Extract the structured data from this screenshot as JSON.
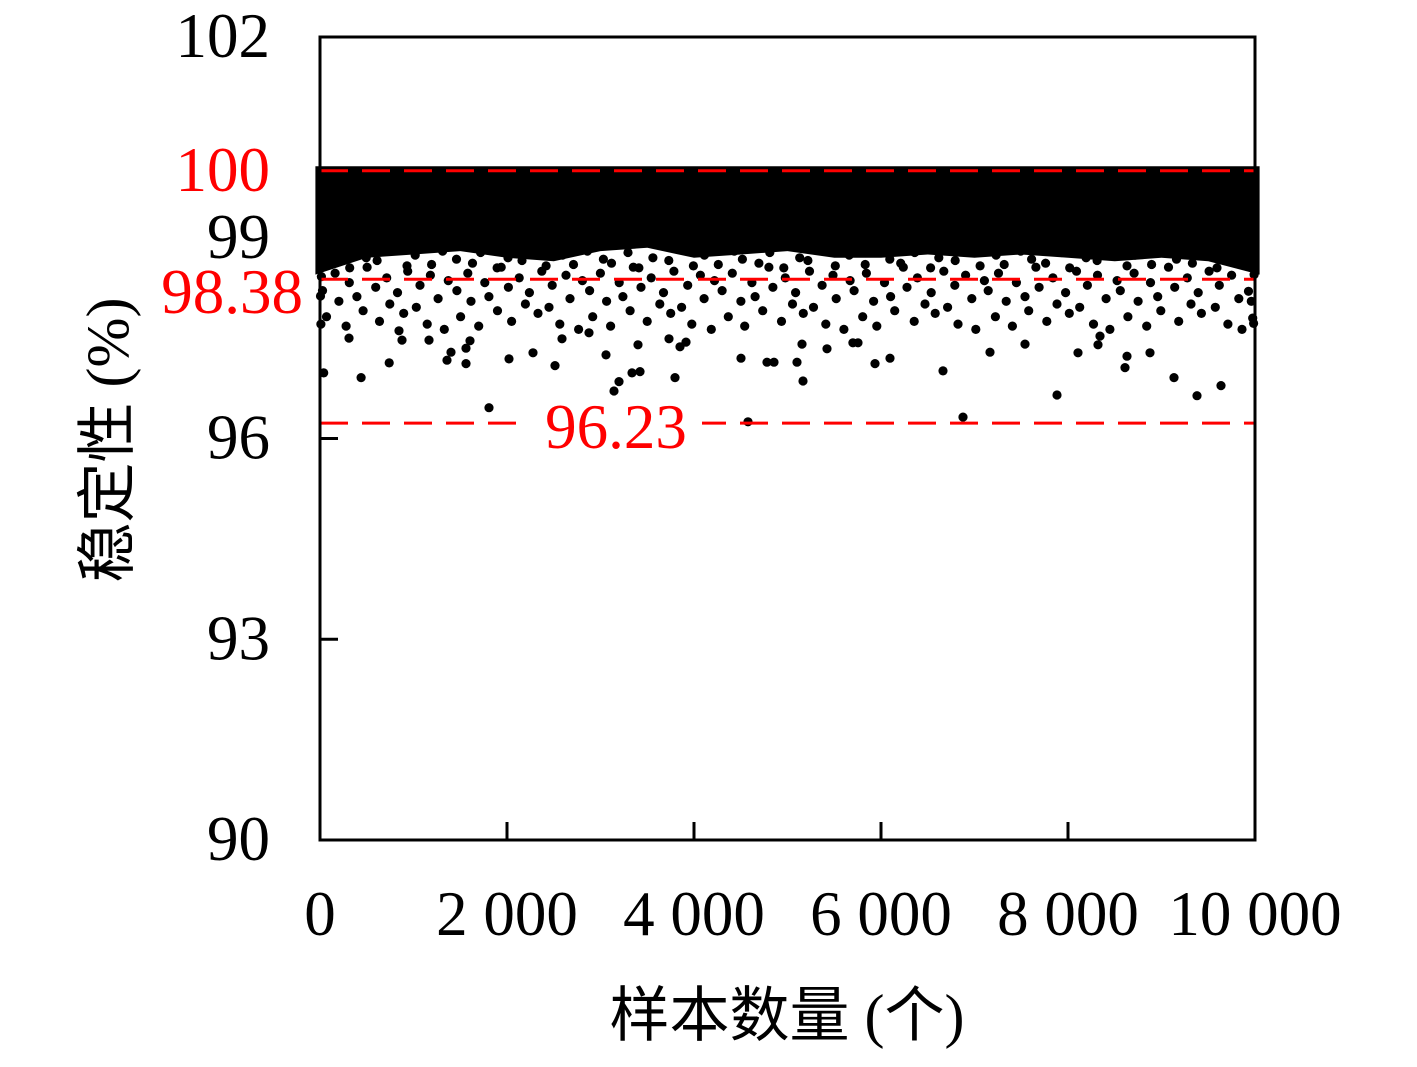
{
  "chart_data": {
    "type": "scatter",
    "xlabel": "样本数量 (个)",
    "ylabel": "稳定性 (%)",
    "xlim": [
      0,
      10000
    ],
    "ylim": [
      90,
      102
    ],
    "grid": false,
    "marker_color": "#000000",
    "x_ticks": {
      "values": [
        0,
        2000,
        4000,
        6000,
        8000,
        10000
      ],
      "labels": [
        "0",
        "2 000",
        "4 000",
        "6 000",
        "8 000",
        "10 000"
      ]
    },
    "y_ticks": {
      "values": [
        90,
        93,
        96,
        99,
        102
      ],
      "labels": [
        "90",
        "93",
        "96",
        "99",
        "102"
      ]
    },
    "reference_lines": [
      {
        "y": 100,
        "label": "100",
        "color": "#ff0000",
        "line_style": "dashed",
        "label_position": "left-axis"
      },
      {
        "y": 98.38,
        "label": "98.38",
        "color": "#ff0000",
        "line_style": "dashed",
        "label_position": "left-axis"
      },
      {
        "y": 96.23,
        "label": "96.23",
        "color": "#ff0000",
        "line_style": "dashed",
        "label_position": "inline"
      }
    ],
    "dense_band": {
      "x": [
        0,
        500,
        1000,
        1500,
        2000,
        2500,
        3000,
        3500,
        4000,
        4500,
        5000,
        5500,
        6000,
        6500,
        7000,
        7500,
        8000,
        8500,
        9000,
        9500,
        10000
      ],
      "y_lower": [
        98.45,
        98.7,
        98.75,
        98.8,
        98.7,
        98.65,
        98.8,
        98.85,
        98.7,
        98.75,
        98.8,
        98.7,
        98.7,
        98.75,
        98.7,
        98.75,
        98.7,
        98.65,
        98.7,
        98.65,
        98.45
      ],
      "y_upper": 100
    },
    "points": [
      [
        40,
        96.98
      ],
      [
        310,
        97.5
      ],
      [
        440,
        96.91
      ],
      [
        740,
        97.13
      ],
      [
        845,
        97.61
      ],
      [
        877,
        97.47
      ],
      [
        1166,
        97.47
      ],
      [
        1358,
        97.17
      ],
      [
        1401,
        97.29
      ],
      [
        1561,
        97.12
      ],
      [
        1561,
        97.35
      ],
      [
        1604,
        97.46
      ],
      [
        1807,
        96.46
      ],
      [
        2021,
        97.19
      ],
      [
        2278,
        97.28
      ],
      [
        2513,
        97.09
      ],
      [
        2588,
        97.49
      ],
      [
        2877,
        97.58
      ],
      [
        3059,
        97.25
      ],
      [
        3144,
        96.71
      ],
      [
        3198,
        96.85
      ],
      [
        3337,
        96.98
      ],
      [
        3401,
        97.4
      ],
      [
        3422,
        97.0
      ],
      [
        3733,
        97.49
      ],
      [
        3797,
        96.91
      ],
      [
        3850,
        97.37
      ],
      [
        3914,
        97.44
      ],
      [
        4503,
        97.2
      ],
      [
        4578,
        96.25
      ],
      [
        4781,
        97.14
      ],
      [
        4856,
        97.14
      ],
      [
        5102,
        97.14
      ],
      [
        5166,
        96.86
      ],
      [
        5155,
        97.41
      ],
      [
        5422,
        97.34
      ],
      [
        5700,
        97.43
      ],
      [
        5754,
        97.43
      ],
      [
        5936,
        97.12
      ],
      [
        6096,
        97.2
      ],
      [
        6663,
        97.01
      ],
      [
        6877,
        96.32
      ],
      [
        7166,
        97.29
      ],
      [
        7540,
        97.41
      ],
      [
        7882,
        96.65
      ],
      [
        8107,
        97.28
      ],
      [
        8342,
        97.53
      ],
      [
        8321,
        97.4
      ],
      [
        8610,
        97.06
      ],
      [
        8631,
        97.23
      ],
      [
        8877,
        97.28
      ],
      [
        9134,
        96.91
      ],
      [
        9380,
        96.64
      ],
      [
        9636,
        96.79
      ],
      [
        27,
        98.21
      ],
      [
        70,
        97.82
      ],
      [
        162,
        98.47
      ],
      [
        202,
        98.05
      ],
      [
        279,
        97.68
      ],
      [
        313,
        98.33
      ],
      [
        395,
        98.12
      ],
      [
        461,
        97.91
      ],
      [
        504,
        98.56
      ],
      [
        596,
        98.26
      ],
      [
        636,
        97.75
      ],
      [
        713,
        98.4
      ],
      [
        747,
        98.01
      ],
      [
        829,
        98.18
      ],
      [
        895,
        97.87
      ],
      [
        938,
        98.5
      ],
      [
        1030,
        97.96
      ],
      [
        1070,
        98.29
      ],
      [
        1147,
        97.71
      ],
      [
        1181,
        98.44
      ],
      [
        1263,
        98.09
      ],
      [
        1329,
        97.63
      ],
      [
        1372,
        98.36
      ],
      [
        1464,
        98.21
      ],
      [
        1504,
        97.82
      ],
      [
        1581,
        98.47
      ],
      [
        1615,
        98.05
      ],
      [
        1697,
        97.68
      ],
      [
        1763,
        98.33
      ],
      [
        1806,
        98.12
      ],
      [
        1898,
        97.91
      ],
      [
        1938,
        98.56
      ],
      [
        2015,
        98.26
      ],
      [
        2049,
        97.75
      ],
      [
        2131,
        98.4
      ],
      [
        2197,
        98.01
      ],
      [
        2240,
        98.18
      ],
      [
        2332,
        97.87
      ],
      [
        2372,
        98.5
      ],
      [
        2449,
        97.96
      ],
      [
        2483,
        98.29
      ],
      [
        2565,
        97.71
      ],
      [
        2631,
        98.44
      ],
      [
        2674,
        98.09
      ],
      [
        2766,
        97.63
      ],
      [
        2806,
        98.36
      ],
      [
        2883,
        98.21
      ],
      [
        2917,
        97.82
      ],
      [
        2999,
        98.47
      ],
      [
        3065,
        98.05
      ],
      [
        3108,
        97.68
      ],
      [
        3200,
        98.33
      ],
      [
        3240,
        98.12
      ],
      [
        3317,
        97.91
      ],
      [
        3351,
        98.56
      ],
      [
        3433,
        98.26
      ],
      [
        3499,
        97.75
      ],
      [
        3542,
        98.4
      ],
      [
        3634,
        98.01
      ],
      [
        3674,
        98.18
      ],
      [
        3751,
        97.87
      ],
      [
        3785,
        98.5
      ],
      [
        3867,
        97.96
      ],
      [
        3933,
        98.29
      ],
      [
        3976,
        97.71
      ],
      [
        4068,
        98.44
      ],
      [
        4108,
        98.09
      ],
      [
        4185,
        97.63
      ],
      [
        4219,
        98.36
      ],
      [
        4301,
        98.21
      ],
      [
        4367,
        97.82
      ],
      [
        4410,
        98.47
      ],
      [
        4502,
        98.05
      ],
      [
        4542,
        97.68
      ],
      [
        4619,
        98.33
      ],
      [
        4653,
        98.12
      ],
      [
        4735,
        97.91
      ],
      [
        4801,
        98.56
      ],
      [
        4844,
        98.26
      ],
      [
        4936,
        97.75
      ],
      [
        4976,
        98.4
      ],
      [
        5053,
        98.01
      ],
      [
        5087,
        98.18
      ],
      [
        5169,
        97.87
      ],
      [
        5235,
        98.5
      ],
      [
        5278,
        97.96
      ],
      [
        5370,
        98.29
      ],
      [
        5410,
        97.71
      ],
      [
        5487,
        98.44
      ],
      [
        5521,
        98.09
      ],
      [
        5603,
        97.63
      ],
      [
        5669,
        98.36
      ],
      [
        5712,
        98.21
      ],
      [
        5804,
        97.82
      ],
      [
        5844,
        98.47
      ],
      [
        5921,
        98.05
      ],
      [
        5955,
        97.68
      ],
      [
        6037,
        98.33
      ],
      [
        6103,
        98.12
      ],
      [
        6146,
        97.91
      ],
      [
        6238,
        98.56
      ],
      [
        6278,
        98.26
      ],
      [
        6355,
        97.75
      ],
      [
        6389,
        98.4
      ],
      [
        6471,
        98.01
      ],
      [
        6537,
        98.18
      ],
      [
        6580,
        97.87
      ],
      [
        6672,
        98.5
      ],
      [
        6712,
        97.96
      ],
      [
        6789,
        98.29
      ],
      [
        6823,
        97.71
      ],
      [
        6905,
        98.44
      ],
      [
        6971,
        98.09
      ],
      [
        7014,
        97.63
      ],
      [
        7106,
        98.36
      ],
      [
        7146,
        98.21
      ],
      [
        7223,
        97.82
      ],
      [
        7257,
        98.47
      ],
      [
        7339,
        98.05
      ],
      [
        7405,
        97.68
      ],
      [
        7448,
        98.33
      ],
      [
        7540,
        98.12
      ],
      [
        7580,
        97.91
      ],
      [
        7657,
        98.56
      ],
      [
        7691,
        98.26
      ],
      [
        7773,
        97.75
      ],
      [
        7839,
        98.4
      ],
      [
        7882,
        98.01
      ],
      [
        7974,
        98.18
      ],
      [
        8014,
        97.87
      ],
      [
        8091,
        98.5
      ],
      [
        8125,
        97.96
      ],
      [
        8207,
        98.29
      ],
      [
        8273,
        97.71
      ],
      [
        8316,
        98.44
      ],
      [
        8408,
        98.09
      ],
      [
        8448,
        97.63
      ],
      [
        8525,
        98.36
      ],
      [
        8559,
        98.21
      ],
      [
        8641,
        97.82
      ],
      [
        8707,
        98.47
      ],
      [
        8750,
        98.05
      ],
      [
        8842,
        97.68
      ],
      [
        8882,
        98.33
      ],
      [
        8959,
        98.12
      ],
      [
        8993,
        97.91
      ],
      [
        9075,
        98.56
      ],
      [
        9141,
        98.26
      ],
      [
        9184,
        97.75
      ],
      [
        9276,
        98.4
      ],
      [
        9316,
        98.01
      ],
      [
        9393,
        98.18
      ],
      [
        9427,
        97.87
      ],
      [
        9509,
        98.5
      ],
      [
        9575,
        97.96
      ],
      [
        9618,
        98.29
      ],
      [
        9710,
        97.71
      ],
      [
        9750,
        98.44
      ],
      [
        9827,
        98.09
      ],
      [
        9861,
        97.63
      ],
      [
        5,
        98.13
      ],
      [
        10,
        97.71
      ],
      [
        15,
        98.42
      ],
      [
        9930,
        98.2
      ],
      [
        9975,
        97.8
      ],
      [
        9990,
        98.45
      ],
      [
        9985,
        97.72
      ],
      [
        9960,
        98.05
      ],
      [
        60,
        98.62
      ],
      [
        231,
        98.78
      ],
      [
        318,
        98.55
      ],
      [
        494,
        98.7
      ],
      [
        611,
        98.66
      ],
      [
        760,
        98.83
      ],
      [
        931,
        98.58
      ],
      [
        1018,
        98.74
      ],
      [
        1194,
        98.6
      ],
      [
        1311,
        98.8
      ],
      [
        1460,
        98.68
      ],
      [
        1631,
        98.62
      ],
      [
        1718,
        98.78
      ],
      [
        1894,
        98.55
      ],
      [
        2011,
        98.7
      ],
      [
        2160,
        98.66
      ],
      [
        2331,
        98.83
      ],
      [
        2418,
        98.58
      ],
      [
        2594,
        98.74
      ],
      [
        2711,
        98.6
      ],
      [
        2860,
        98.8
      ],
      [
        3031,
        98.68
      ],
      [
        3118,
        98.62
      ],
      [
        3294,
        98.78
      ],
      [
        3411,
        98.55
      ],
      [
        3560,
        98.7
      ],
      [
        3731,
        98.66
      ],
      [
        3818,
        98.83
      ],
      [
        3994,
        98.58
      ],
      [
        4111,
        98.74
      ],
      [
        4260,
        98.6
      ],
      [
        4431,
        98.8
      ],
      [
        4518,
        98.68
      ],
      [
        4694,
        98.62
      ],
      [
        4811,
        98.78
      ],
      [
        4960,
        98.55
      ],
      [
        5131,
        98.7
      ],
      [
        5218,
        98.66
      ],
      [
        5394,
        98.83
      ],
      [
        5511,
        98.58
      ],
      [
        5660,
        98.74
      ],
      [
        5831,
        98.6
      ],
      [
        5918,
        98.8
      ],
      [
        6094,
        98.68
      ],
      [
        6211,
        98.62
      ],
      [
        6360,
        98.78
      ],
      [
        6531,
        98.55
      ],
      [
        6618,
        98.7
      ],
      [
        6794,
        98.66
      ],
      [
        6911,
        98.83
      ],
      [
        7060,
        98.58
      ],
      [
        7231,
        98.74
      ],
      [
        7318,
        98.6
      ],
      [
        7494,
        98.8
      ],
      [
        7611,
        98.68
      ],
      [
        7760,
        98.62
      ],
      [
        7931,
        98.78
      ],
      [
        8018,
        98.55
      ],
      [
        8194,
        98.7
      ],
      [
        8311,
        98.66
      ],
      [
        8460,
        98.83
      ],
      [
        8631,
        98.58
      ],
      [
        8718,
        98.74
      ],
      [
        8894,
        98.6
      ],
      [
        9011,
        98.8
      ],
      [
        9160,
        98.68
      ],
      [
        9331,
        98.62
      ],
      [
        9418,
        98.78
      ],
      [
        9594,
        98.55
      ],
      [
        9711,
        98.7
      ],
      [
        9860,
        98.66
      ]
    ]
  }
}
